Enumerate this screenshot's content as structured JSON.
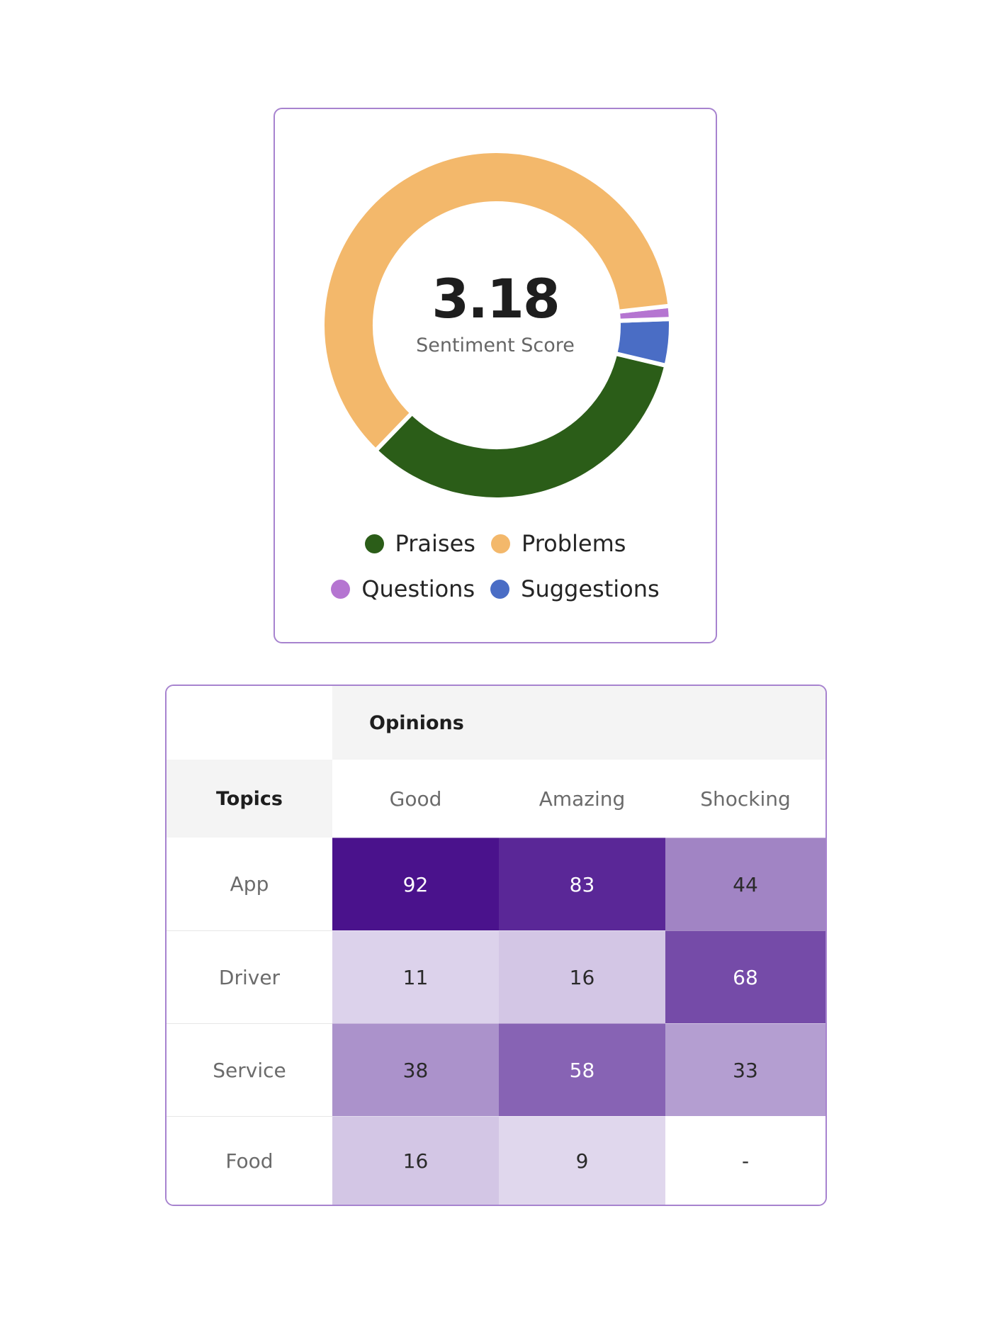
{
  "colors": {
    "praises": "#2b5d18",
    "problems": "#f3b86b",
    "questions": "#b575d1",
    "suggestions": "#4a6dc5"
  },
  "sentiment": {
    "score": "3.18",
    "label": "Sentiment Score"
  },
  "legend": [
    {
      "label": "Praises",
      "color": "#2b5d18"
    },
    {
      "label": "Problems",
      "color": "#f3b86b"
    },
    {
      "label": "Questions",
      "color": "#b575d1"
    },
    {
      "label": "Suggestions",
      "color": "#4a6dc5"
    }
  ],
  "chart_data": [
    {
      "type": "pie",
      "variant": "donut",
      "center_value": "3.18",
      "center_label": "Sentiment Score",
      "slices": [
        {
          "name": "Praises",
          "value": 33.5,
          "color": "#2b5d18"
        },
        {
          "name": "Problems",
          "value": 61,
          "color": "#f3b86b"
        },
        {
          "name": "Questions",
          "value": 1.2,
          "color": "#b575d1"
        },
        {
          "name": "Suggestions",
          "value": 4.3,
          "color": "#4a6dc5"
        }
      ],
      "legend_position": "bottom"
    },
    {
      "type": "heatmap",
      "title": "",
      "group_header": "Opinions",
      "row_header": "Topics",
      "columns": [
        "Good",
        "Amazing",
        "Shocking"
      ],
      "rows": [
        "App",
        "Driver",
        "Service",
        "Food"
      ],
      "values": [
        [
          92,
          83,
          44
        ],
        [
          11,
          16,
          68
        ],
        [
          38,
          58,
          33
        ],
        [
          16,
          9,
          null
        ]
      ],
      "missing_display": "-"
    }
  ]
}
